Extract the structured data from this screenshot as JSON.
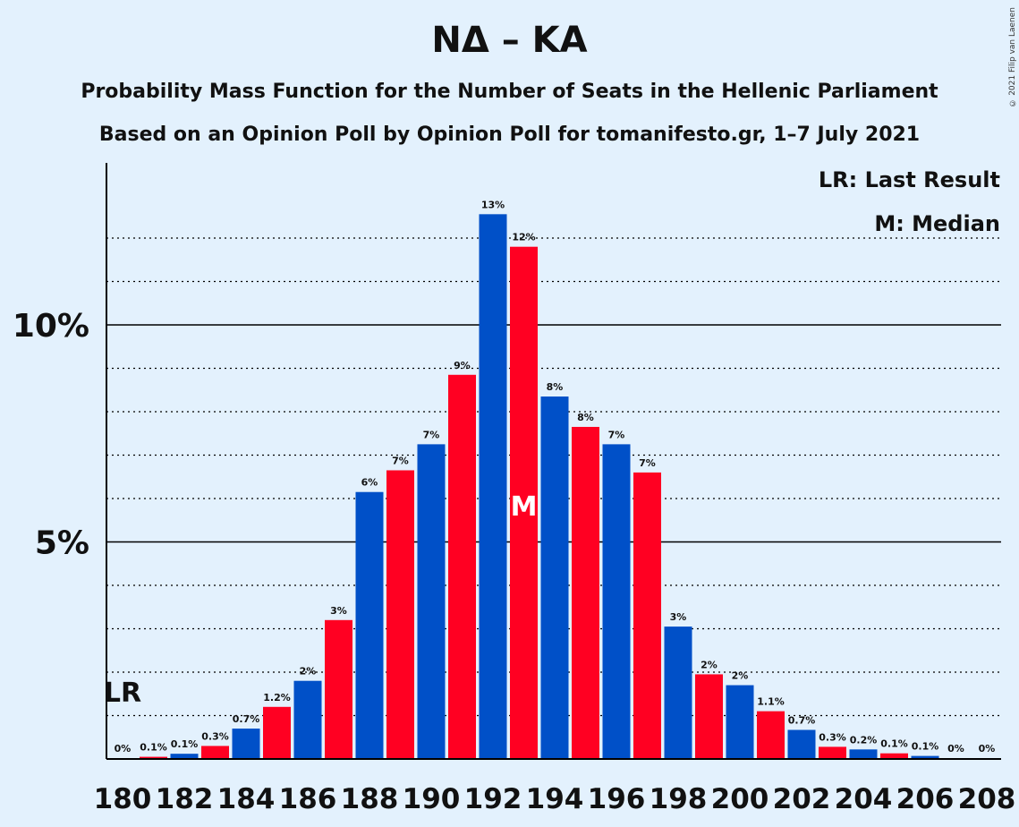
{
  "title": "NΔ – KA",
  "subtitle1": "Probability Mass Function for the Number of Seats in the Hellenic Parliament",
  "subtitle2": "Based on an Opinion Poll by Opinion Poll for tomanifesto.gr, 1–7 July 2021",
  "copyright": "© 2021 Filip van Laenen",
  "legend": {
    "last_result": "LR: Last Result",
    "median": "M: Median"
  },
  "colors": {
    "background": "#e3f1fd",
    "blue": "#0050c8",
    "red": "#ff0022"
  },
  "chart_data": {
    "type": "bar",
    "title": "NΔ – KA",
    "xlabel": "",
    "ylabel": "",
    "ylim": [
      0,
      13.7
    ],
    "y_ticks": [
      {
        "value": 5,
        "label": "5%"
      },
      {
        "value": 10,
        "label": "10%"
      }
    ],
    "grid": "dotted minor every 1%, solid at 5% and 10%",
    "x_tick_labels": [
      "180",
      "182",
      "184",
      "186",
      "188",
      "190",
      "192",
      "194",
      "196",
      "198",
      "200",
      "202",
      "204",
      "206",
      "208"
    ],
    "categories": [
      180,
      181,
      182,
      183,
      184,
      185,
      186,
      187,
      188,
      189,
      190,
      191,
      192,
      193,
      194,
      195,
      196,
      197,
      198,
      199,
      200,
      201,
      202,
      203,
      204,
      205,
      206,
      207,
      208
    ],
    "values": [
      0,
      0.05,
      0.12,
      0.3,
      0.7,
      1.2,
      1.8,
      3.2,
      6.15,
      6.65,
      7.25,
      8.85,
      12.55,
      11.8,
      8.35,
      7.65,
      7.25,
      6.6,
      3.05,
      1.95,
      1.7,
      1.1,
      0.67,
      0.28,
      0.22,
      0.13,
      0.07,
      0,
      0
    ],
    "labels": [
      "0%",
      "0.1%",
      "0.1%",
      "0.3%",
      "0.7%",
      "1.2%",
      "2%",
      "3%",
      "6%",
      "7%",
      "7%",
      "9%",
      "13%",
      "12%",
      "8%",
      "8%",
      "7%",
      "7%",
      "3%",
      "2%",
      "2%",
      "1.1%",
      "0.7%",
      "0.3%",
      "0.2%",
      "0.1%",
      "0.1%",
      "0%",
      "0%"
    ],
    "last_result": {
      "seat": 180,
      "label": "LR"
    },
    "median": {
      "seat": 193,
      "label": "M"
    }
  }
}
